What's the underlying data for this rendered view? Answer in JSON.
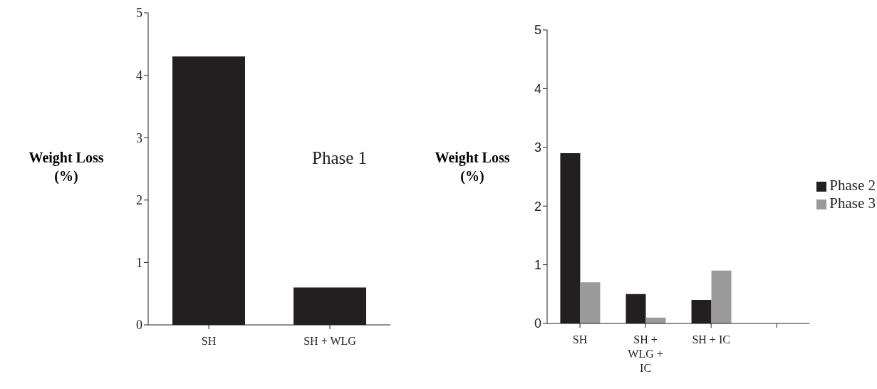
{
  "chart_data": [
    {
      "type": "bar",
      "ylabel": "Weight Loss\n(%)",
      "categories": [
        "SH",
        "SH + WLG"
      ],
      "values": [
        4.3,
        0.6
      ],
      "color": "#231f20",
      "ylim": [
        0,
        5
      ],
      "yticks": [
        0,
        1,
        2,
        3,
        4,
        5
      ],
      "grid": false,
      "legend": false,
      "annotations": [
        "Phase 1"
      ]
    },
    {
      "type": "bar",
      "ylabel": "Weight Loss\n(%)",
      "categories": [
        "SH",
        "SH + WLG + IC",
        "SH + IC",
        null
      ],
      "series": [
        {
          "name": "Phase 2",
          "color": "#231f20",
          "values": [
            2.9,
            0.5,
            0.4,
            null
          ]
        },
        {
          "name": "Phase 3",
          "color": "#9a9a9a",
          "values": [
            0.7,
            0.1,
            0.9,
            null
          ]
        }
      ],
      "ylim": [
        0,
        5
      ],
      "yticks": [
        0,
        1,
        2,
        3,
        4,
        5
      ],
      "grid": false,
      "legend": "right"
    }
  ]
}
